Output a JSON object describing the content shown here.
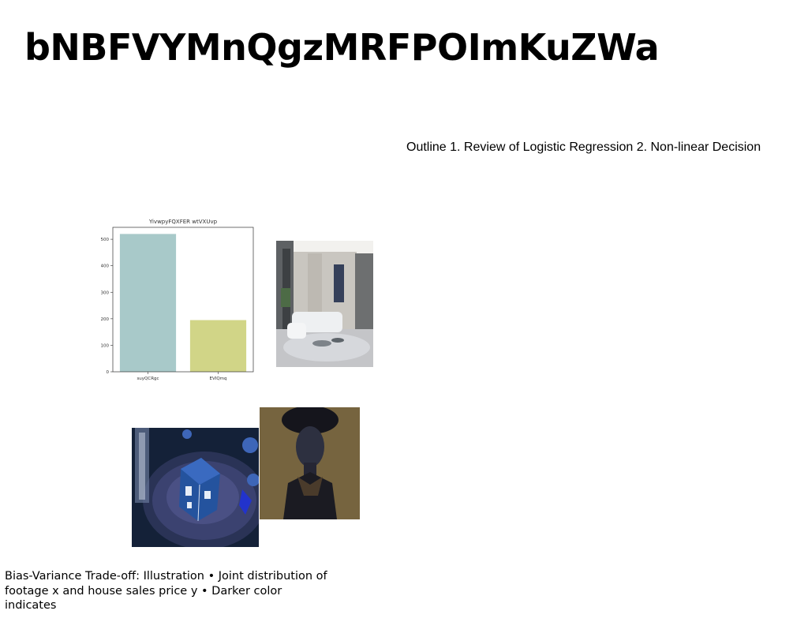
{
  "slide": {
    "title": "bNBFVYMnQgzMRFPOImKuZWa",
    "outline_text": "Outline 1. Review of Logistic Regression 2. Non-linear Decision",
    "caption_line1": "Bias-Variance Trade-off: Illustration • Joint distribution of",
    "caption_line2": "footage x and house sales price y • Darker color indicates"
  },
  "chart_data": {
    "type": "bar",
    "title": "YivwpyFQXFER wtVXUvp",
    "categories": [
      "suyQCRgc",
      "EVIQmq"
    ],
    "values": [
      520,
      195
    ],
    "colors": [
      "#a8c9c9",
      "#d1d587"
    ],
    "yticks": [
      0,
      100,
      200,
      300,
      400,
      500
    ],
    "ylim": [
      0,
      545
    ],
    "xlabel": "",
    "ylabel": ""
  },
  "images": {
    "living_room": "living-room-photo",
    "gift_plate": "gift-box-on-plate-photo",
    "portrait": "portrait-photo"
  }
}
